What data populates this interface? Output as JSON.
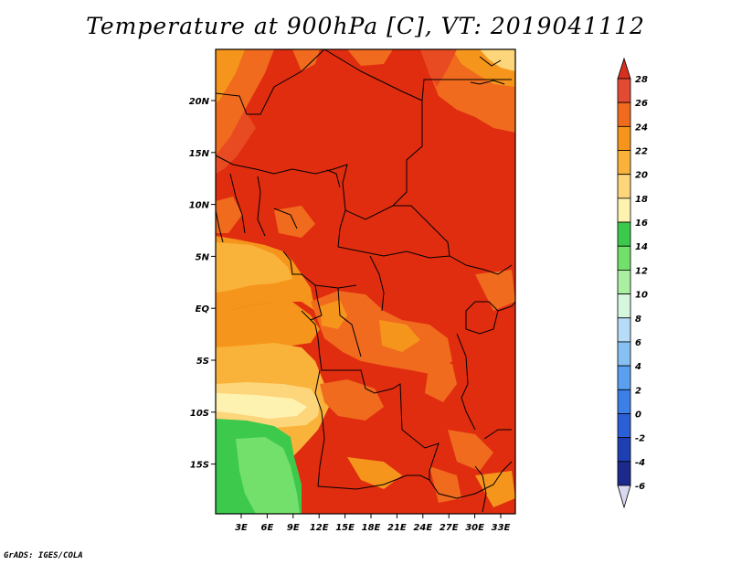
{
  "title": "Temperature at 900hPa [C], VT: 2019041112",
  "credit": "GrADS: IGES/COLA",
  "map": {
    "lat_labels": [
      "20N",
      "15N",
      "10N",
      "5N",
      "EQ",
      "5S",
      "10S",
      "15S"
    ],
    "lon_labels": [
      "3E",
      "6E",
      "9E",
      "12E",
      "15E",
      "18E",
      "21E",
      "24E",
      "27E",
      "30E",
      "33E"
    ]
  },
  "colorbar": {
    "labels": [
      "28",
      "26",
      "24",
      "22",
      "20",
      "18",
      "16",
      "14",
      "12",
      "10",
      "8",
      "6",
      "4",
      "2",
      "0",
      "-2",
      "-4",
      "-6"
    ],
    "colors": [
      "#d7301f",
      "#e34a33",
      "#f06b1d",
      "#f6951b",
      "#fab33a",
      "#fdd57a",
      "#fef2b0",
      "#3dc94c",
      "#72e06b",
      "#a9f0a3",
      "#d6f6de",
      "#b6dcf8",
      "#87c1f4",
      "#5a9ff0",
      "#3d7fe8",
      "#2a5fd6",
      "#1e3fb4",
      "#1b2a8c",
      "#101060",
      "#d8d8f0"
    ],
    "top_triangle_color": "#d7301f",
    "bottom_triangle_color": "#d8d8f0"
  }
}
